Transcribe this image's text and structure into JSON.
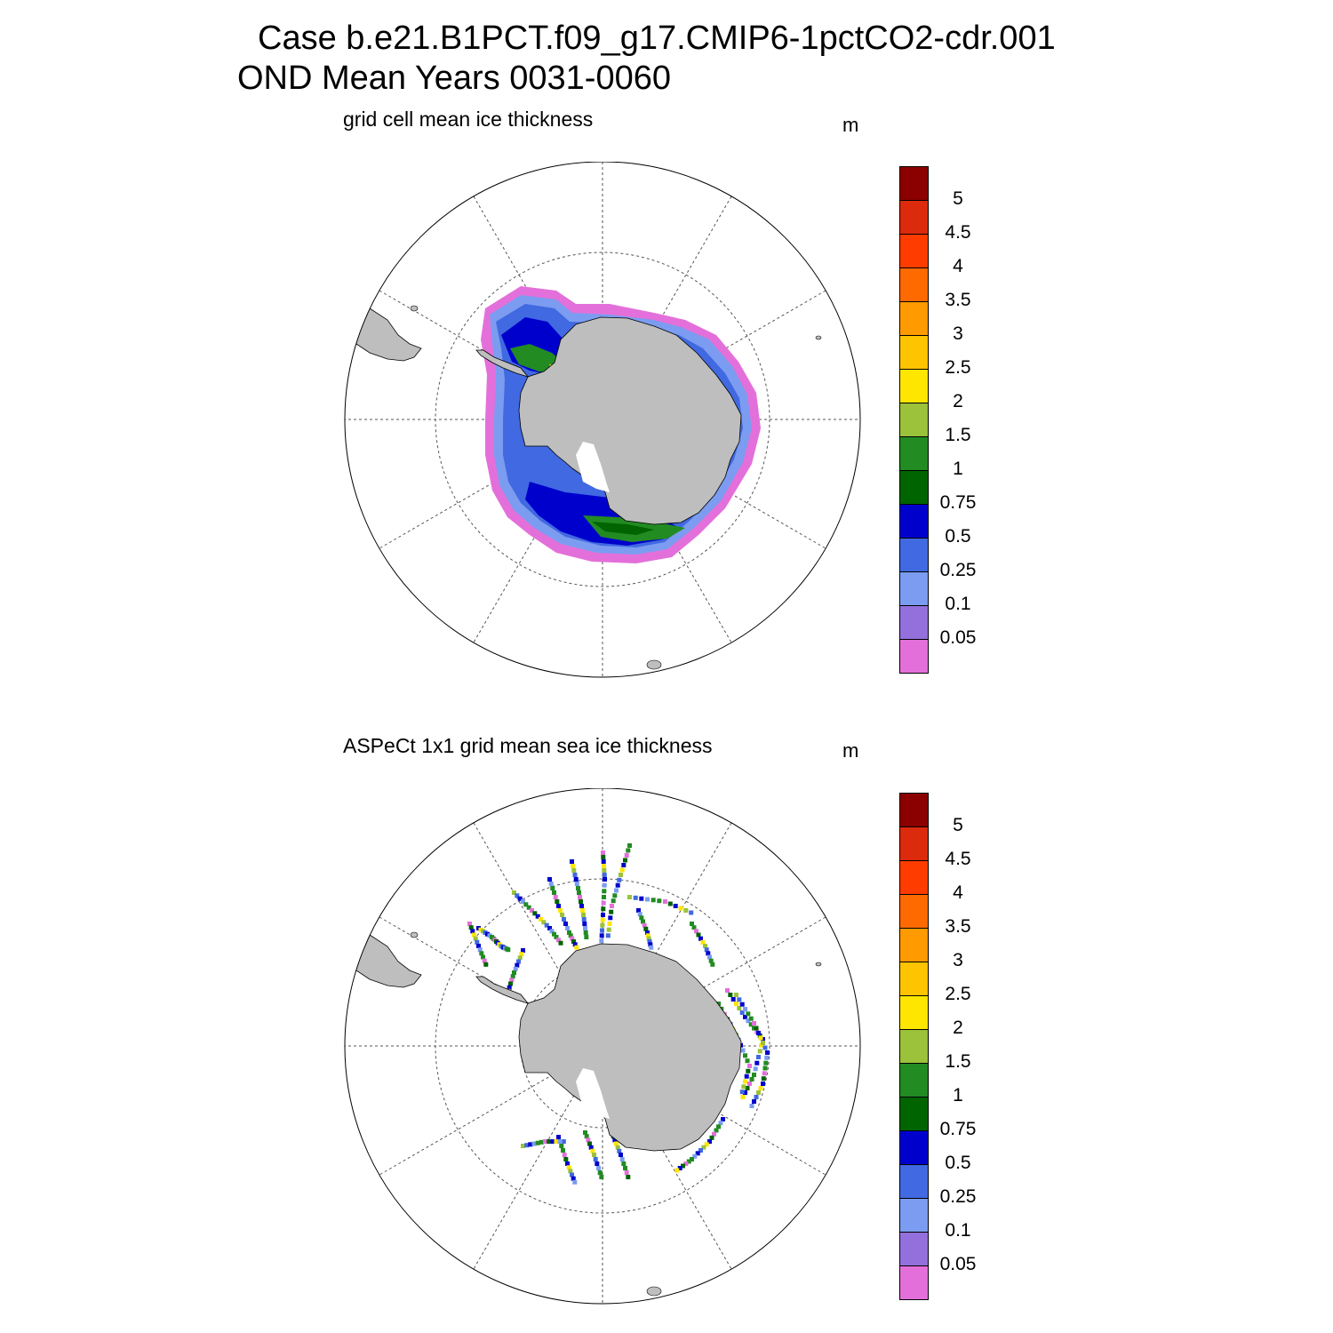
{
  "title": {
    "line1": "Case b.e21.B1PCT.f09_g17.CMIP6-1pctCO2-cdr.001",
    "line2": "OND Mean   Years 0031-0060"
  },
  "panels": [
    {
      "id": "model",
      "title": "grid cell mean ice thickness",
      "units": "m"
    },
    {
      "id": "obs",
      "title": "ASPeCt 1x1 grid mean sea ice thickness",
      "units": "m"
    }
  ],
  "colorbar": {
    "labels": [
      "5",
      "4.5",
      "4",
      "3.5",
      "3",
      "2.5",
      "2",
      "1.5",
      "1",
      "0.75",
      "0.5",
      "0.25",
      "0.1",
      "0.05"
    ],
    "colors": [
      "#8b0000",
      "#dc2b0c",
      "#ff3c00",
      "#ff6a00",
      "#ff9a00",
      "#ffc400",
      "#ffe600",
      "#9bc23a",
      "#228b22",
      "#006400",
      "#0000cd",
      "#4169e1",
      "#7b9cf0",
      "#9370db",
      "#e370da"
    ]
  },
  "colors": {
    "land": "#bebebe",
    "grid": "#555555"
  }
}
